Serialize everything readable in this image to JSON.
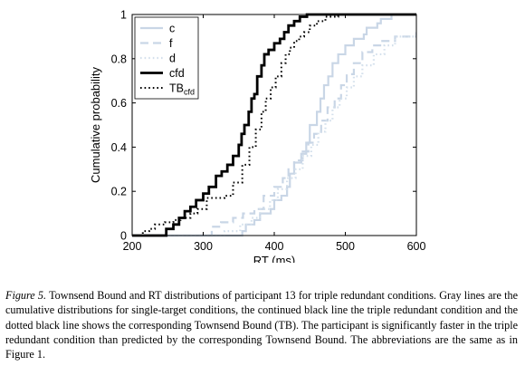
{
  "chart_data": {
    "type": "line",
    "xlabel": "RT (ms)",
    "ylabel": "Cumulative probability",
    "xlim": [
      200,
      600
    ],
    "ylim": [
      0,
      1
    ],
    "x_ticks": [
      "200",
      "300",
      "400",
      "500",
      "600"
    ],
    "y_ticks": [
      "0",
      "0.2",
      "0.4",
      "0.6",
      "0.8",
      "1"
    ],
    "legend_position": "top-left",
    "grid": false,
    "series": [
      {
        "name": "c",
        "color": "#c9d6e6",
        "style": "solid",
        "width": 2.2,
        "points": [
          [
            200,
            0
          ],
          [
            340,
            0
          ],
          [
            355,
            0.02
          ],
          [
            360,
            0.05
          ],
          [
            372,
            0.07
          ],
          [
            380,
            0.1
          ],
          [
            395,
            0.12
          ],
          [
            400,
            0.16
          ],
          [
            410,
            0.18
          ],
          [
            418,
            0.22
          ],
          [
            422,
            0.28
          ],
          [
            428,
            0.33
          ],
          [
            438,
            0.37
          ],
          [
            445,
            0.42
          ],
          [
            450,
            0.5
          ],
          [
            460,
            0.56
          ],
          [
            465,
            0.62
          ],
          [
            470,
            0.68
          ],
          [
            476,
            0.72
          ],
          [
            482,
            0.78
          ],
          [
            490,
            0.82
          ],
          [
            500,
            0.86
          ],
          [
            512,
            0.89
          ],
          [
            526,
            0.91
          ],
          [
            530,
            0.94
          ],
          [
            545,
            0.96
          ],
          [
            550,
            0.98
          ],
          [
            565,
            1.0
          ],
          [
            600,
            1.0
          ]
        ]
      },
      {
        "name": "f",
        "color": "#c9d6e6",
        "style": "dashed",
        "width": 2.2,
        "points": [
          [
            200,
            0
          ],
          [
            300,
            0
          ],
          [
            312,
            0.04
          ],
          [
            325,
            0.06
          ],
          [
            342,
            0.08
          ],
          [
            356,
            0.1
          ],
          [
            372,
            0.12
          ],
          [
            385,
            0.18
          ],
          [
            400,
            0.22
          ],
          [
            412,
            0.26
          ],
          [
            420,
            0.3
          ],
          [
            428,
            0.34
          ],
          [
            440,
            0.38
          ],
          [
            448,
            0.42
          ],
          [
            456,
            0.46
          ],
          [
            466,
            0.52
          ],
          [
            475,
            0.58
          ],
          [
            485,
            0.62
          ],
          [
            494,
            0.68
          ],
          [
            502,
            0.73
          ],
          [
            512,
            0.78
          ],
          [
            524,
            0.83
          ],
          [
            538,
            0.86
          ],
          [
            552,
            0.88
          ],
          [
            570,
            0.9
          ],
          [
            600,
            0.92
          ]
        ]
      },
      {
        "name": "d",
        "color": "#d4e0ec",
        "style": "dotted",
        "width": 2.2,
        "points": [
          [
            200,
            0
          ],
          [
            320,
            0
          ],
          [
            330,
            0.02
          ],
          [
            352,
            0.05
          ],
          [
            368,
            0.08
          ],
          [
            380,
            0.12
          ],
          [
            394,
            0.16
          ],
          [
            405,
            0.21
          ],
          [
            418,
            0.26
          ],
          [
            430,
            0.3
          ],
          [
            440,
            0.36
          ],
          [
            452,
            0.41
          ],
          [
            462,
            0.47
          ],
          [
            472,
            0.52
          ],
          [
            482,
            0.58
          ],
          [
            492,
            0.62
          ],
          [
            502,
            0.67
          ],
          [
            512,
            0.72
          ],
          [
            524,
            0.77
          ],
          [
            540,
            0.82
          ],
          [
            555,
            0.86
          ],
          [
            570,
            0.9
          ],
          [
            600,
            0.92
          ]
        ]
      },
      {
        "name": "cfd",
        "color": "#000000",
        "style": "solid",
        "width": 2.8,
        "points": [
          [
            200,
            0
          ],
          [
            243,
            0
          ],
          [
            248,
            0.03
          ],
          [
            258,
            0.05
          ],
          [
            266,
            0.08
          ],
          [
            274,
            0.11
          ],
          [
            282,
            0.13
          ],
          [
            290,
            0.16
          ],
          [
            300,
            0.19
          ],
          [
            308,
            0.22
          ],
          [
            318,
            0.27
          ],
          [
            326,
            0.29
          ],
          [
            334,
            0.32
          ],
          [
            342,
            0.36
          ],
          [
            350,
            0.41
          ],
          [
            354,
            0.46
          ],
          [
            358,
            0.5
          ],
          [
            364,
            0.56
          ],
          [
            368,
            0.62
          ],
          [
            372,
            0.64
          ],
          [
            376,
            0.72
          ],
          [
            382,
            0.77
          ],
          [
            386,
            0.82
          ],
          [
            392,
            0.84
          ],
          [
            400,
            0.87
          ],
          [
            408,
            0.89
          ],
          [
            414,
            0.92
          ],
          [
            420,
            0.95
          ],
          [
            428,
            0.97
          ],
          [
            436,
            0.99
          ],
          [
            446,
            1.0
          ],
          [
            600,
            1.0
          ]
        ]
      },
      {
        "name": "TBcfd",
        "color": "#000000",
        "style": "dotted",
        "width": 2.0,
        "points": [
          [
            200,
            0
          ],
          [
            210,
            0
          ],
          [
            215,
            0.02
          ],
          [
            224,
            0.03
          ],
          [
            232,
            0.05
          ],
          [
            246,
            0.06
          ],
          [
            258,
            0.07
          ],
          [
            268,
            0.08
          ],
          [
            282,
            0.1
          ],
          [
            292,
            0.12
          ],
          [
            305,
            0.17
          ],
          [
            318,
            0.17
          ],
          [
            330,
            0.18
          ],
          [
            342,
            0.24
          ],
          [
            355,
            0.32
          ],
          [
            365,
            0.4
          ],
          [
            374,
            0.48
          ],
          [
            382,
            0.56
          ],
          [
            388,
            0.62
          ],
          [
            395,
            0.67
          ],
          [
            402,
            0.72
          ],
          [
            410,
            0.78
          ],
          [
            416,
            0.82
          ],
          [
            422,
            0.85
          ],
          [
            428,
            0.88
          ],
          [
            435,
            0.9
          ],
          [
            442,
            0.92
          ],
          [
            450,
            0.95
          ],
          [
            460,
            0.97
          ],
          [
            472,
            0.99
          ],
          [
            490,
            1.0
          ],
          [
            600,
            1.0
          ]
        ]
      }
    ],
    "legend": [
      {
        "label": "c",
        "sub": ""
      },
      {
        "label": "f",
        "sub": ""
      },
      {
        "label": "d",
        "sub": ""
      },
      {
        "label": "cfd",
        "sub": ""
      },
      {
        "label": "TB",
        "sub": "cfd"
      }
    ]
  },
  "caption": {
    "lead": "Figure 5.",
    "text": "Townsend Bound and RT distributions of participant 13 for triple redundant conditions. Gray lines are the cumulative distributions for single-target conditions, the continued black line the triple redundant condition and the dotted black line shows the corresponding Townsend Bound (TB). The participant is significantly faster in the triple redundant condition than predicted by the corresponding Townsend Bound. The abbreviations are the same as in Figure 1."
  }
}
